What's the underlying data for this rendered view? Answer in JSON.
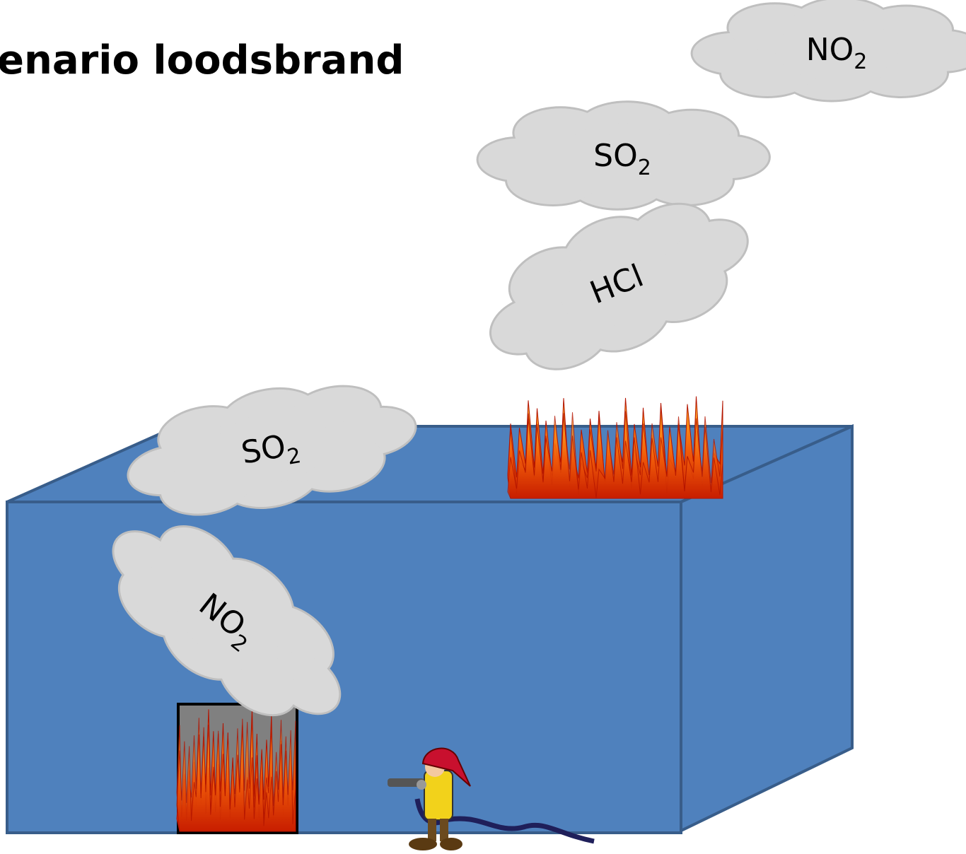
{
  "title": "enario loodsbrand",
  "clouds": [
    {
      "label": "NO",
      "subscript": "2"
    },
    {
      "label": "SO",
      "subscript": "2"
    },
    {
      "label": "HCl"
    },
    {
      "label": "SO",
      "subscript": "2"
    },
    {
      "label": "NO",
      "subscript": "2"
    }
  ]
}
